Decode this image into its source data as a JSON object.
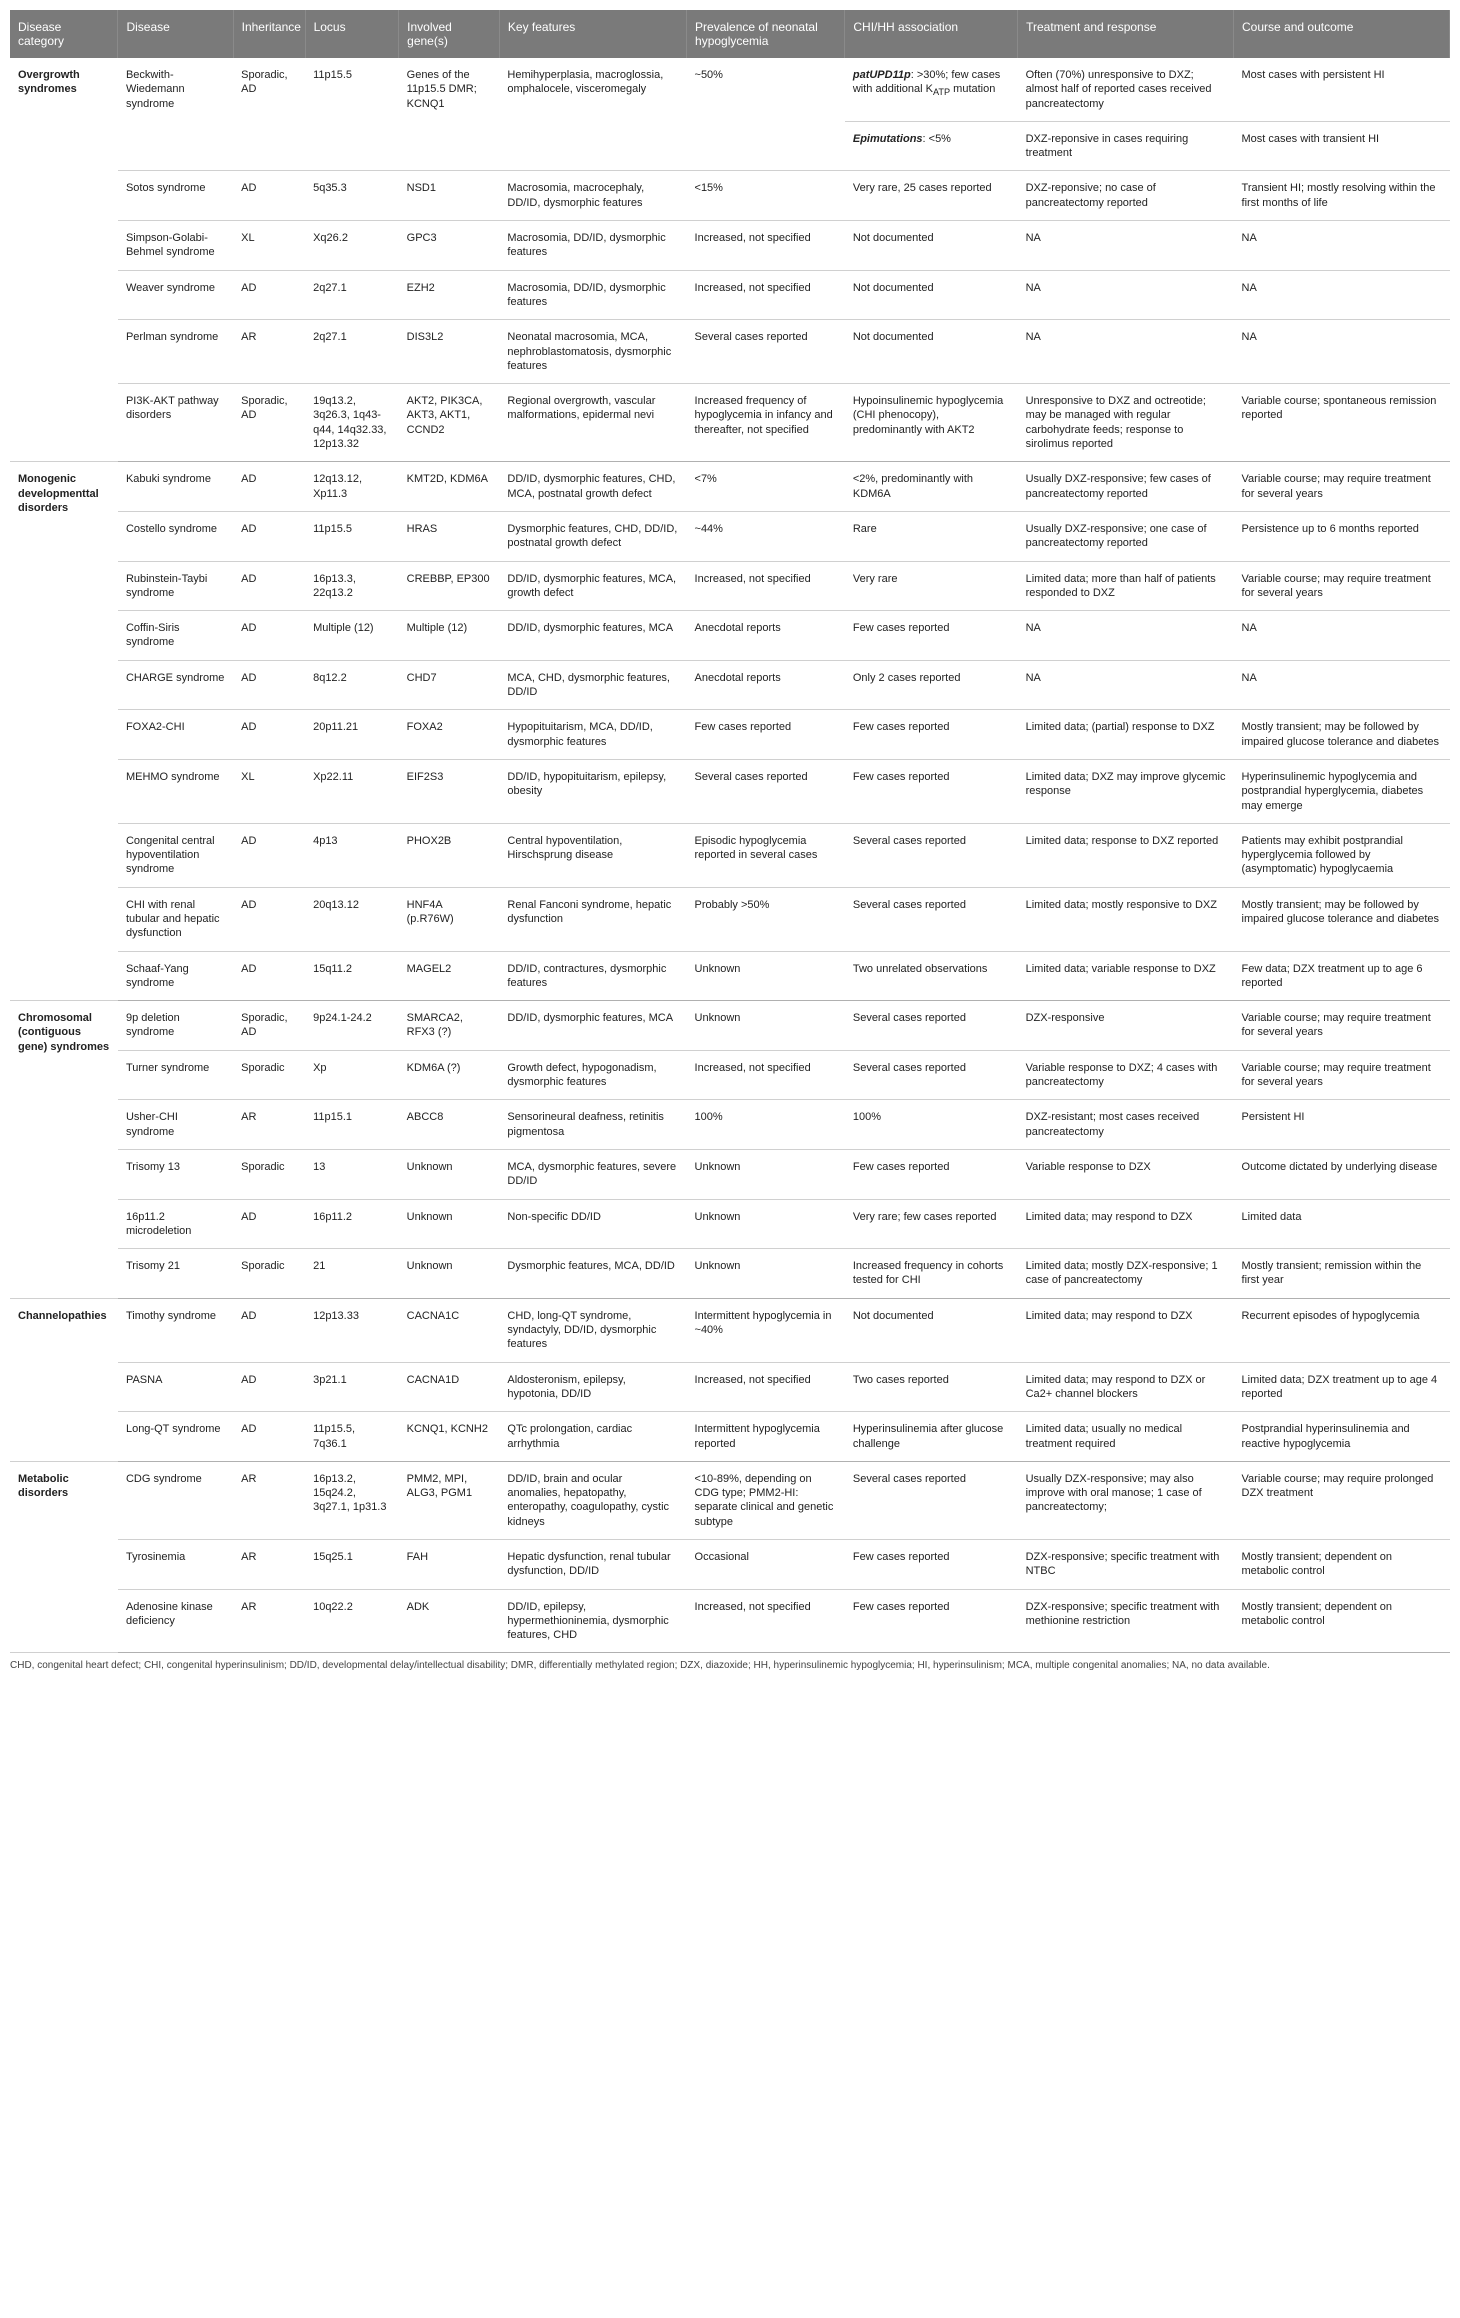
{
  "headers": [
    "Disease category",
    "Disease",
    "Inheritance",
    "Locus",
    "Involved gene(s)",
    "Key features",
    "Prevalence of neonatal hypoglycemia",
    "CHI/HH association",
    "Treatment and response",
    "Course and outcome"
  ],
  "footnote": "CHD, congenital heart defect; CHI, congenital hyperinsulinism; DD/ID, developmental delay/intellectual disability; DMR, differentially methylated region; DZX, diazoxide; HH, hyperinsulinemic hypoglycemia; HI, hyperinsulinism; MCA, multiple congenital anomalies; NA, no data available.",
  "rows": [
    {
      "cat": "Overgrowth syndromes",
      "catSpan": 7,
      "c": [
        "Beckwith-Wiedemann syndrome",
        "Sporadic, AD",
        "11p15.5",
        "Genes of the 11p15.5 DMR; KCNQ1",
        "Hemihyperplasia, macroglossia, omphalocele, visceromegaly",
        "~50%",
        "<b><i>patUPD11p</i></b>: >30%; few cases with additional K<sub>ATP</sub> mutation",
        "Often (70%) unresponsive to DXZ; almost half of reported cases received pancreatectomy",
        "Most cases with persistent HI"
      ],
      "merge5": 2
    },
    {
      "cont": true,
      "c": [
        "",
        "",
        "",
        "",
        "",
        "",
        "<b><i>Epimutations</i></b>: <5%",
        "DXZ-reponsive in cases requiring treatment",
        "Most cases with transient HI"
      ]
    },
    {
      "c": [
        "Sotos syndrome",
        "AD",
        "5q35.3",
        "NSD1",
        "Macrosomia, macrocephaly, DD/ID, dysmorphic features",
        "<15%",
        "Very rare, 25 cases reported",
        "DXZ-reponsive; no case of pancreatectomy reported",
        "Transient HI; mostly resolving within the first months of life"
      ]
    },
    {
      "c": [
        "Simpson-Golabi-Behmel syndrome",
        "XL",
        "Xq26.2",
        "GPC3",
        "Macrosomia, DD/ID, dysmorphic features",
        "Increased, not specified",
        "Not documented",
        "NA",
        "NA"
      ]
    },
    {
      "c": [
        "Weaver syndrome",
        "AD",
        "2q27.1",
        "EZH2",
        "Macrosomia, DD/ID, dysmorphic features",
        "Increased, not specified",
        "Not documented",
        "NA",
        "NA"
      ]
    },
    {
      "c": [
        "Perlman syndrome",
        "AR",
        "2q27.1",
        "DIS3L2",
        "Neonatal macrosomia, MCA, nephroblastomatosis, dysmorphic features",
        "Several cases reported",
        "Not documented",
        "NA",
        "NA"
      ]
    },
    {
      "c": [
        "PI3K-AKT pathway disorders",
        "Sporadic, AD",
        "19q13.2, 3q26.3, 1q43-q44, 14q32.33, 12p13.32",
        "AKT2, PIK3CA, AKT3, AKT1, CCND2",
        "Regional overgrowth, vascular malformations, epidermal nevi",
        "Increased frequency of hypoglycemia in infancy and thereafter, not specified",
        "Hypoinsulinemic hypoglycemia (CHI phenocopy), predominantly with AKT2",
        "Unresponsive to DXZ and octreotide; may be managed with regular carbohydrate feeds; response to sirolimus reported",
        "Variable course; spontaneous remission reported"
      ],
      "sectionEnd": true
    },
    {
      "cat": "Monogenic developmenttal disorders",
      "catSpan": 10,
      "c": [
        "Kabuki syndrome",
        "AD",
        "12q13.12, Xp11.3",
        "KMT2D, KDM6A",
        "DD/ID, dysmorphic features, CHD, MCA, postnatal growth defect",
        "<7%",
        "<2%, predominantly with KDM6A",
        "Usually DXZ-responsive; few cases of pancreatectomy reported",
        "Variable course; may require treatment for several years"
      ]
    },
    {
      "c": [
        "Costello syndrome",
        "AD",
        "11p15.5",
        "HRAS",
        "Dysmorphic features, CHD, DD/ID, postnatal growth defect",
        "~44%",
        "Rare",
        "Usually DXZ-responsive; one case of pancreatectomy reported",
        "Persistence up to 6 months reported"
      ]
    },
    {
      "c": [
        "Rubinstein-Taybi syndrome",
        "AD",
        "16p13.3, 22q13.2",
        "CREBBP, EP300",
        "DD/ID, dysmorphic features, MCA, growth defect",
        "Increased, not specified",
        "Very rare",
        "Limited data; more than half of patients responded to DXZ",
        "Variable course; may require treatment for several years"
      ]
    },
    {
      "c": [
        "Coffin-Siris syndrome",
        "AD",
        "Multiple (12)",
        "Multiple (12)",
        "DD/ID, dysmorphic features, MCA",
        "Anecdotal reports",
        "Few cases reported",
        "NA",
        "NA"
      ]
    },
    {
      "c": [
        "CHARGE syndrome",
        "AD",
        "8q12.2",
        "CHD7",
        "MCA, CHD, dysmorphic features, DD/ID",
        "Anecdotal reports",
        "Only 2 cases reported",
        "NA",
        "NA"
      ]
    },
    {
      "c": [
        "FOXA2-CHI",
        "AD",
        "20p11.21",
        "FOXA2",
        "Hypopituitarism, MCA, DD/ID, dysmorphic features",
        "Few cases reported",
        "Few cases reported",
        "Limited data; (partial) response to DXZ",
        "Mostly transient; may be followed by impaired glucose tolerance and diabetes"
      ]
    },
    {
      "c": [
        "MEHMO syndrome",
        "XL",
        "Xp22.11",
        "EIF2S3",
        "DD/ID, hypopituitarism, epilepsy, obesity",
        "Several cases reported",
        "Few cases reported",
        "Limited data; DXZ may improve glycemic response",
        "Hyperinsulinemic hypoglycemia and postprandial hyperglycemia, diabetes may emerge"
      ]
    },
    {
      "c": [
        "Congenital central hypoventilation syndrome",
        "AD",
        "4p13",
        "PHOX2B",
        "Central hypoventilation, Hirschsprung disease",
        "Episodic hypoglycemia reported in several cases",
        "Several cases reported",
        "Limited data; response to DXZ reported",
        "Patients may exhibit postprandial hyperglycemia followed by (asymptomatic) hypoglycaemia"
      ]
    },
    {
      "c": [
        "CHI with renal tubular and hepatic dysfunction",
        "AD",
        "20q13.12",
        "HNF4A (p.R76W)",
        "Renal Fanconi syndrome, hepatic dysfunction",
        "Probably >50%",
        "Several cases reported",
        "Limited data; mostly responsive to DXZ",
        "Mostly transient; may be followed by impaired glucose tolerance and diabetes"
      ]
    },
    {
      "c": [
        "Schaaf-Yang syndrome",
        "AD",
        "15q11.2",
        "MAGEL2",
        "DD/ID, contractures, dysmorphic features",
        "Unknown",
        "Two unrelated observations",
        "Limited data; variable response to DXZ",
        "Few data; DZX treatment up to age 6 reported"
      ],
      "sectionEnd": true
    },
    {
      "cat": "Chromosomal (contiguous gene) syndromes",
      "catSpan": 6,
      "c": [
        "9p deletion syndrome",
        "Sporadic, AD",
        "9p24.1-24.2",
        "SMARCA2, RFX3 (?)",
        "DD/ID, dysmorphic features, MCA",
        "Unknown",
        "Several cases reported",
        "DZX-responsive",
        "Variable course; may require treatment for several years"
      ]
    },
    {
      "c": [
        "Turner syndrome",
        "Sporadic",
        "Xp",
        "KDM6A (?)",
        "Growth defect, hypogonadism, dysmorphic features",
        "Increased, not specified",
        "Several cases reported",
        "Variable response to DXZ; 4 cases with pancreatectomy",
        "Variable course; may require treatment for several years"
      ]
    },
    {
      "c": [
        "Usher-CHI syndrome",
        "AR",
        "11p15.1",
        "ABCC8",
        "Sensorineural deafness, retinitis pigmentosa",
        "100%",
        "100%",
        "DXZ-resistant; most cases received pancreatectomy",
        "Persistent HI"
      ]
    },
    {
      "c": [
        "Trisomy 13",
        "Sporadic",
        "13",
        "Unknown",
        "MCA, dysmorphic features, severe DD/ID",
        "Unknown",
        "Few cases reported",
        "Variable response to DZX",
        "Outcome dictated by underlying disease"
      ]
    },
    {
      "c": [
        "16p11.2 microdeletion",
        "AD",
        "16p11.2",
        "Unknown",
        "Non-specific DD/ID",
        "Unknown",
        "Very rare; few cases reported",
        "Limited data; may respond to DZX",
        "Limited data"
      ]
    },
    {
      "c": [
        "Trisomy 21",
        "Sporadic",
        "21",
        "Unknown",
        "Dysmorphic features, MCA, DD/ID",
        "Unknown",
        "Increased frequency in cohorts tested for CHI",
        "Limited data; mostly DZX-responsive; 1 case of pancreatectomy",
        "Mostly transient; remission within the first year"
      ],
      "sectionEnd": true
    },
    {
      "cat": "Channelopathies",
      "catSpan": 3,
      "c": [
        "Timothy syndrome",
        "AD",
        "12p13.33",
        "CACNA1C",
        "CHD, long-QT syndrome, syndactyly, DD/ID, dysmorphic features",
        "Intermittent hypoglycemia in ~40%",
        "Not documented",
        "Limited data; may respond to DZX",
        "Recurrent episodes of hypoglycemia"
      ]
    },
    {
      "c": [
        "PASNA",
        "AD",
        "3p21.1",
        "CACNA1D",
        "Aldosteronism, epilepsy, hypotonia, DD/ID",
        "Increased, not specified",
        "Two cases reported",
        "Limited data; may respond to DZX or Ca2+ channel blockers",
        "Limited data; DZX treatment up to age 4 reported"
      ]
    },
    {
      "c": [
        "Long-QT syndrome",
        "AD",
        "11p15.5, 7q36.1",
        "KCNQ1, KCNH2",
        "QTc prolongation, cardiac arrhythmia",
        "Intermittent hypoglycemia reported",
        "Hyperinsulinemia after glucose challenge",
        "Limited data; usually no medical treatment required",
        "Postprandial hyperinsulinemia and reactive hypoglycemia"
      ],
      "sectionEnd": true
    },
    {
      "cat": "Metabolic disorders",
      "catSpan": 3,
      "c": [
        "CDG syndrome",
        "AR",
        "16p13.2, 15q24.2, 3q27.1, 1p31.3",
        "PMM2, MPI, ALG3, PGM1",
        "DD/ID, brain and ocular anomalies, hepatopathy, enteropathy, coagulopathy, cystic kidneys",
        "<10-89%, depending on CDG type; PMM2-HI: separate clinical and genetic subtype",
        "Several cases reported",
        "Usually DZX-responsive; may also improve with oral manose; 1 case of pancreatectomy;",
        "Variable course; may require prolonged DZX treatment"
      ]
    },
    {
      "c": [
        "Tyrosinemia",
        "AR",
        "15q25.1",
        "FAH",
        "Hepatic dysfunction, renal tubular dysfunction, DD/ID",
        "Occasional",
        "Few cases reported",
        "DZX-responsive; specific treatment with NTBC",
        "Mostly transient; dependent on metabolic control"
      ]
    },
    {
      "c": [
        "Adenosine kinase deficiency",
        "AR",
        "10q22.2",
        "ADK",
        "DD/ID, epilepsy, hypermethioninemia, dysmorphic features, CHD",
        "Increased, not specified",
        "Few cases reported",
        "DZX-responsive; specific treatment with methionine restriction",
        "Mostly transient; dependent on metabolic control"
      ],
      "sectionEnd": true
    }
  ]
}
